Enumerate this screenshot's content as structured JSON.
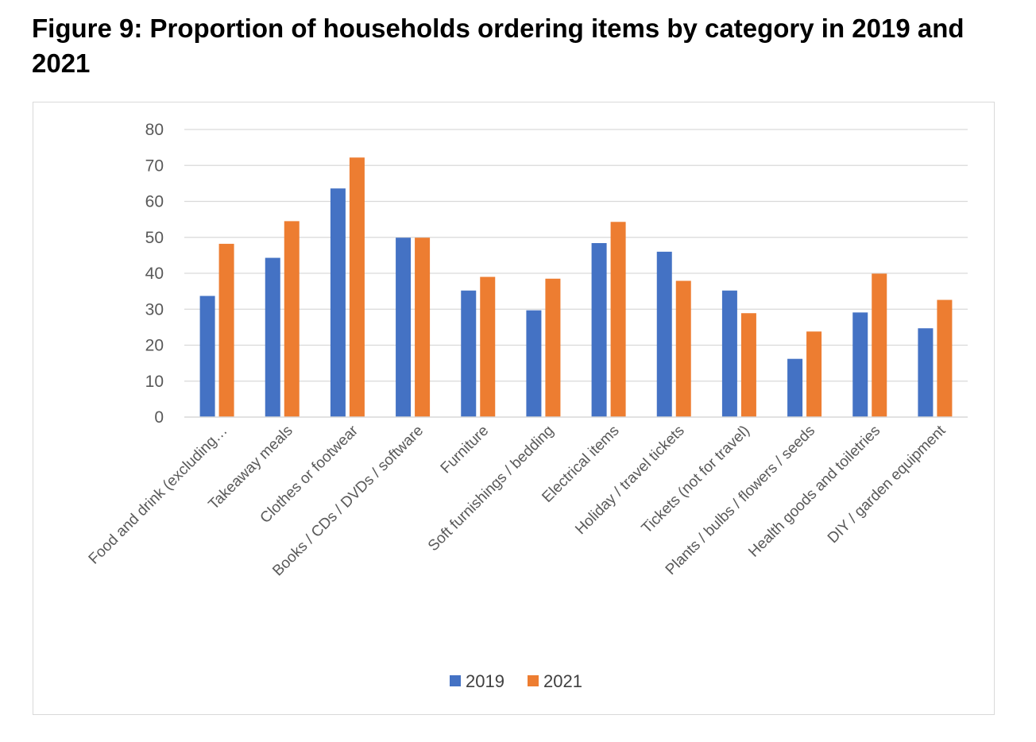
{
  "title": "Figure 9: Proportion of households ordering items by category in 2019 and 2021",
  "chart_data": {
    "type": "bar",
    "title": "Figure 9: Proportion of households ordering items by category in 2019 and 2021",
    "xlabel": "",
    "ylabel": "",
    "ylim": [
      0,
      80
    ],
    "yticks": [
      0,
      10,
      20,
      30,
      40,
      50,
      60,
      70,
      80
    ],
    "grid": true,
    "legend_position": "bottom",
    "categories": [
      "Food and drink (excluding…",
      "Takeaway meals",
      "Clothes or footwear",
      "Books / CDs / DVDs / software",
      "Furniture",
      "Soft furnishings / bedding",
      "Electrical items",
      "Holiday / travel tickets",
      "Tickets (not for travel)",
      "Plants / bulbs / flowers / seeds",
      "Health goods and toiletries",
      "DIY / garden equipment"
    ],
    "series": [
      {
        "name": "2019",
        "color": "#4472c4",
        "values": [
          33.7,
          44.3,
          63.6,
          49.9,
          35.2,
          29.7,
          48.4,
          46.0,
          35.2,
          16.2,
          29.1,
          24.7
        ]
      },
      {
        "name": "2021",
        "color": "#ed7d31",
        "values": [
          48.2,
          54.5,
          72.2,
          49.9,
          39.0,
          38.5,
          54.3,
          37.9,
          28.9,
          23.8,
          39.9,
          32.6
        ]
      }
    ]
  }
}
